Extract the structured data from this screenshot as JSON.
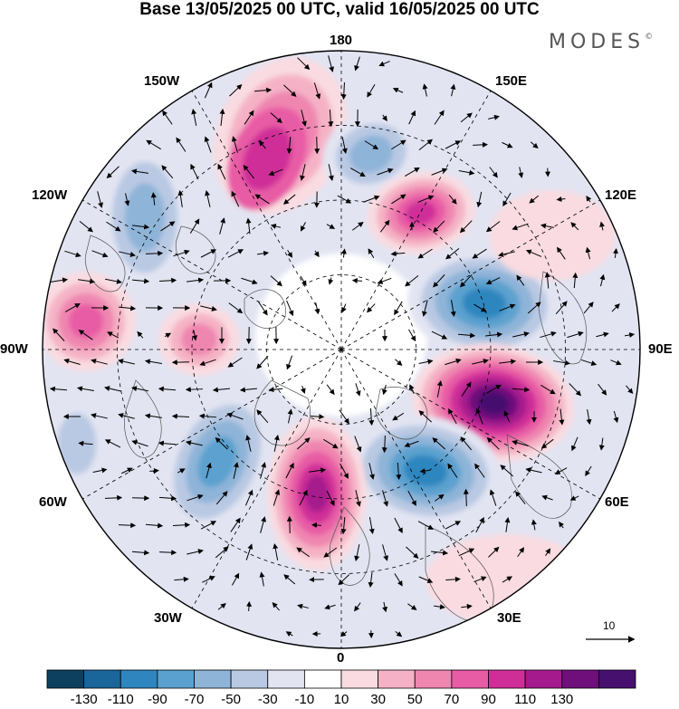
{
  "title": "Base 13/05/2025 00 UTC, valid 16/05/2025 00 UTC",
  "brand": "MODES",
  "brand_mark": "©",
  "longitude_labels": [
    "180",
    "150E",
    "120E",
    "90E",
    "60E",
    "30E",
    "0",
    "30W",
    "60W",
    "90W",
    "120W",
    "150W"
  ],
  "reference_vector": {
    "label": "10"
  },
  "colorbar": {
    "colors": [
      "#0d3f5e",
      "#1a659a",
      "#2f86bf",
      "#5ba1cf",
      "#8eb4d8",
      "#b9c9e3",
      "#e2e4f2",
      "#ffffff",
      "#f9dbe1",
      "#f5b2c6",
      "#ef86b0",
      "#e85ba5",
      "#cf2e98",
      "#a51a8c",
      "#6e0f7c",
      "#45106e"
    ],
    "labels": [
      "-130",
      "-110",
      "-90",
      "-70",
      "-50",
      "-30",
      "-10",
      "10",
      "30",
      "50",
      "70",
      "90",
      "110",
      "130"
    ]
  },
  "colors": {
    "land_outline": "#555555",
    "graticule": "#000000"
  }
}
